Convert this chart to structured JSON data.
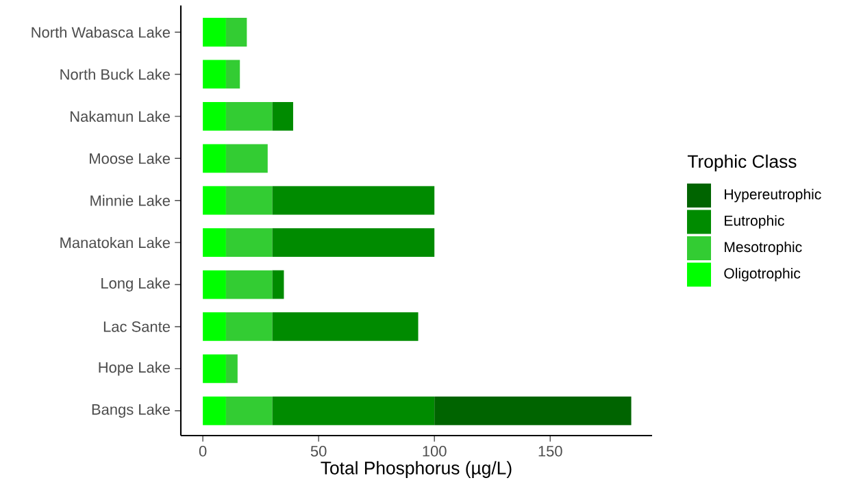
{
  "chart_data": {
    "type": "bar",
    "orientation": "horizontal",
    "stacked": true,
    "legend": "right",
    "legend_title": "Trophic Class",
    "xlabel": "Total Phosphorus (µg/L)",
    "categories": [
      "North Wabasca Lake",
      "North Buck Lake",
      "Nakamun Lake",
      "Moose Lake",
      "Minnie Lake",
      "Manatokan Lake",
      "Long Lake",
      "Lac Sante",
      "Hope Lake",
      "Bangs Lake"
    ],
    "xlim": [
      -9.5,
      194
    ],
    "xticks": [
      0,
      50,
      100,
      150
    ],
    "series": [
      {
        "name": "Oligotrophic",
        "color": "#00ff00",
        "values": [
          10,
          10,
          10,
          10,
          10,
          10,
          10,
          10,
          10,
          10
        ]
      },
      {
        "name": "Mesotrophic",
        "color": "#33cc33",
        "values": [
          9,
          6,
          20,
          18,
          20,
          20,
          20,
          20,
          5,
          20
        ]
      },
      {
        "name": "Eutrophic",
        "color": "#008b00",
        "values": [
          null,
          null,
          9,
          null,
          70,
          70,
          5,
          63,
          null,
          70
        ]
      },
      {
        "name": "Hypereutrophic",
        "color": "#006400",
        "values": [
          null,
          null,
          null,
          null,
          null,
          null,
          null,
          null,
          null,
          85
        ]
      }
    ]
  }
}
